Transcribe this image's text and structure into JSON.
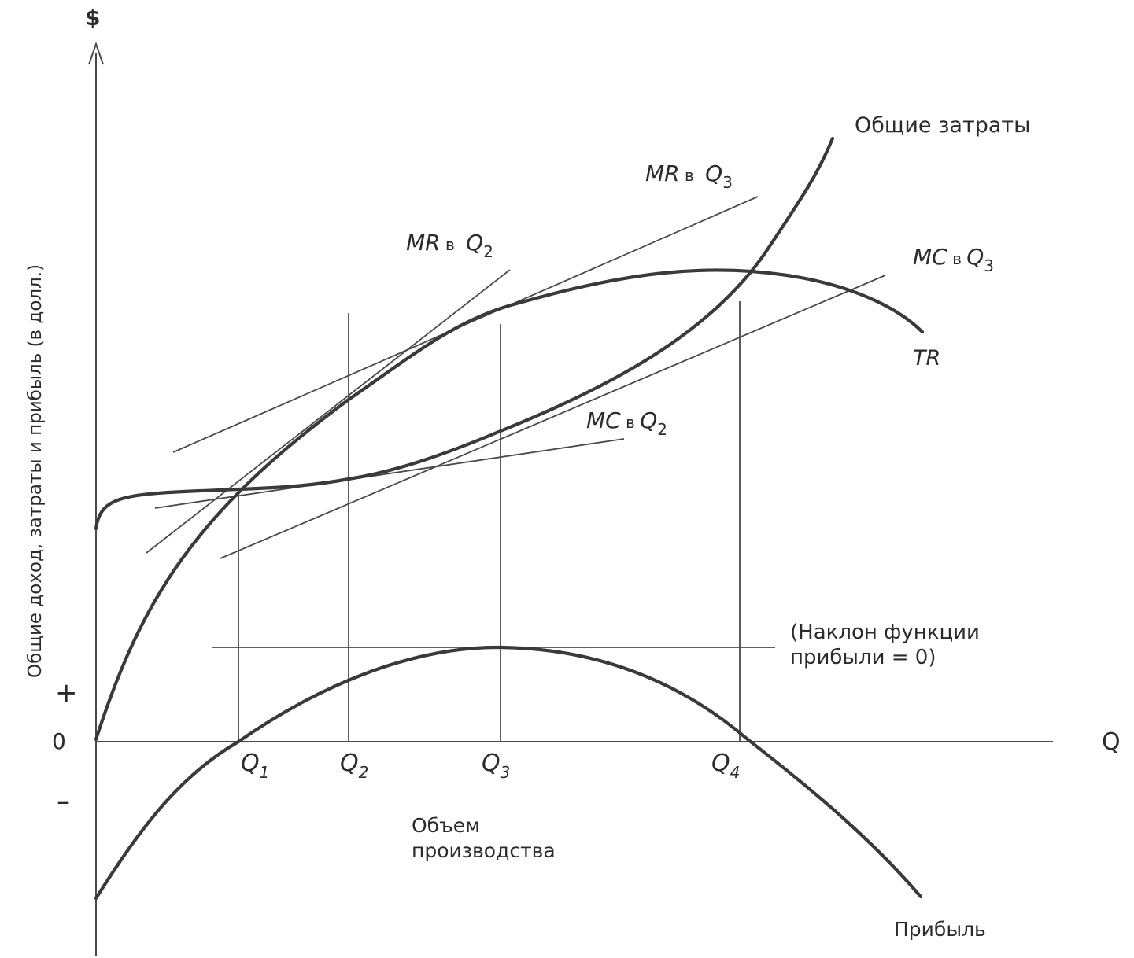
{
  "axes": {
    "y_unit": "$",
    "y_label": "Общие доход, затраты и прибыль (в долл.)",
    "x_symbol": "Q",
    "x_label_line1": "Объем",
    "x_label_line2": "производства",
    "sign_plus": "+",
    "sign_zero": "0",
    "sign_minus": "–"
  },
  "curves": {
    "total_cost": "Общие затраты",
    "total_revenue": "TR",
    "profit": "Прибыль"
  },
  "tangents": {
    "mr_q3": {
      "prefix": "MR",
      "mid": " в ",
      "q": "Q",
      "sub": "3"
    },
    "mr_q2": {
      "prefix": "MR",
      "mid": " в ",
      "q": "Q",
      "sub": "2"
    },
    "mc_q3": {
      "prefix": "MC",
      "mid": " в ",
      "q": "Q",
      "sub": "3"
    },
    "mc_q2": {
      "prefix": "MC",
      "mid": " в ",
      "q": "Q",
      "sub": "2"
    }
  },
  "quantities": [
    {
      "q": "Q",
      "sub": "1"
    },
    {
      "q": "Q",
      "sub": "2"
    },
    {
      "q": "Q",
      "sub": "3"
    },
    {
      "q": "Q",
      "sub": "4"
    }
  ],
  "slope_note": {
    "line1": "(Наклон функции",
    "line2": "прибыли = 0)"
  }
}
